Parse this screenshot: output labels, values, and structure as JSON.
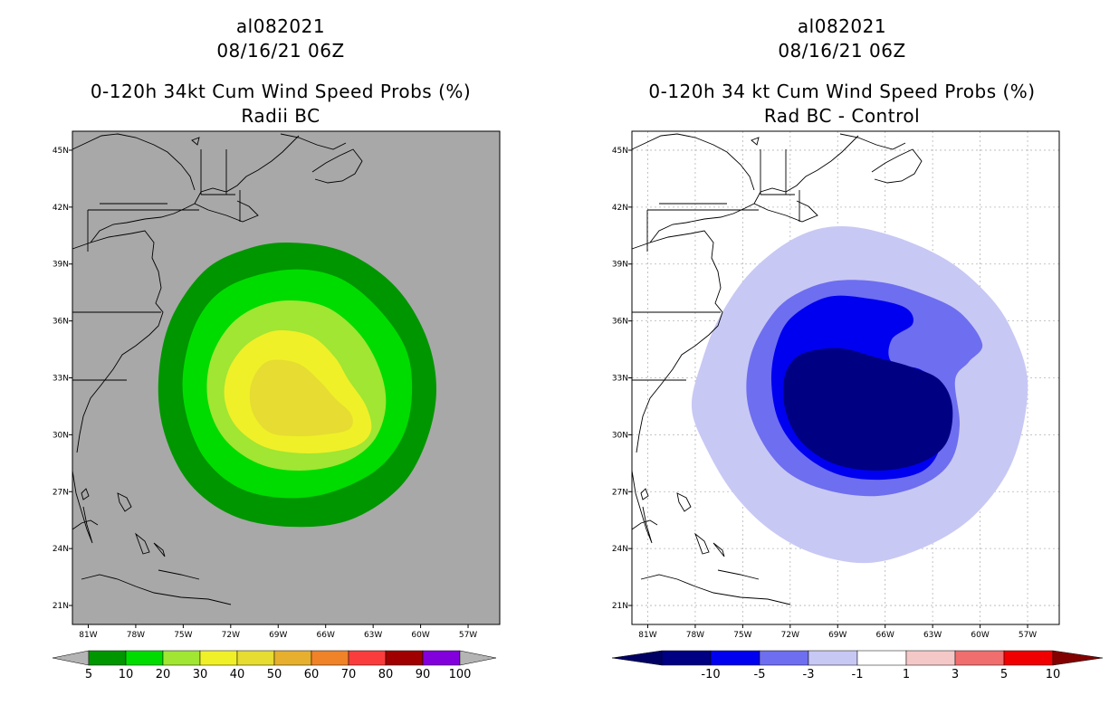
{
  "chart_data": [
    {
      "type": "heatmap",
      "storm_id": "al082021",
      "datetime": "08/16/21 06Z",
      "title": "0-120h 34kt Cum Wind Speed Probs (%)",
      "subtitle": "Radii BC",
      "x_ticks": [
        "81W",
        "78W",
        "75W",
        "72W",
        "69W",
        "66W",
        "63W",
        "60W",
        "57W"
      ],
      "y_ticks": [
        "45N",
        "42N",
        "39N",
        "36N",
        "33N",
        "30N",
        "27N",
        "24N",
        "21N"
      ],
      "x_range_deg": [
        -82,
        -55
      ],
      "y_range_deg": [
        20,
        46
      ],
      "background_color": "#a8a8a8",
      "colorbar": {
        "levels": [
          "5",
          "10",
          "20",
          "30",
          "40",
          "50",
          "60",
          "70",
          "80",
          "90",
          "100"
        ],
        "colors": [
          "#009600",
          "#00dc00",
          "#a0e632",
          "#f0f028",
          "#e6dc32",
          "#e6af2d",
          "#f08228",
          "#fa3c3c",
          "#a00000",
          "#8200dc"
        ],
        "end_color": "#b4b4b4"
      },
      "contours": [
        {
          "level": 5,
          "color": "#009600"
        },
        {
          "level": 10,
          "color": "#00dc00"
        },
        {
          "level": 20,
          "color": "#a0e632"
        },
        {
          "level": 30,
          "color": "#f0f028"
        },
        {
          "level": 40,
          "color": "#e6dc32"
        }
      ]
    },
    {
      "type": "heatmap",
      "storm_id": "al082021",
      "datetime": "08/16/21 06Z",
      "title": "0-120h 34 kt Cum Wind Speed Probs (%)",
      "subtitle": "Rad BC - Control",
      "x_ticks": [
        "81W",
        "78W",
        "75W",
        "72W",
        "69W",
        "66W",
        "63W",
        "60W",
        "57W"
      ],
      "y_ticks": [
        "45N",
        "42N",
        "39N",
        "36N",
        "33N",
        "30N",
        "27N",
        "24N",
        "21N"
      ],
      "x_range_deg": [
        -82,
        -55
      ],
      "y_range_deg": [
        20,
        46
      ],
      "background_color": "#ffffff",
      "grid": true,
      "colorbar": {
        "levels": [
          "-10",
          "-5",
          "-3",
          "-1",
          "1",
          "3",
          "5",
          "10"
        ],
        "colors": [
          "#000082",
          "#0000f0",
          "#6e6ef0",
          "#c8c8f5",
          "#ffffff",
          "#f5c8c8",
          "#f06e6e",
          "#f00000"
        ],
        "low_end_color": "#000064",
        "high_end_color": "#820000"
      },
      "contours": [
        {
          "level": -1,
          "color": "#c8c8f5"
        },
        {
          "level": -3,
          "color": "#6e6ef0"
        },
        {
          "level": -5,
          "color": "#0000f0"
        },
        {
          "level": -10,
          "color": "#000082"
        }
      ]
    }
  ]
}
